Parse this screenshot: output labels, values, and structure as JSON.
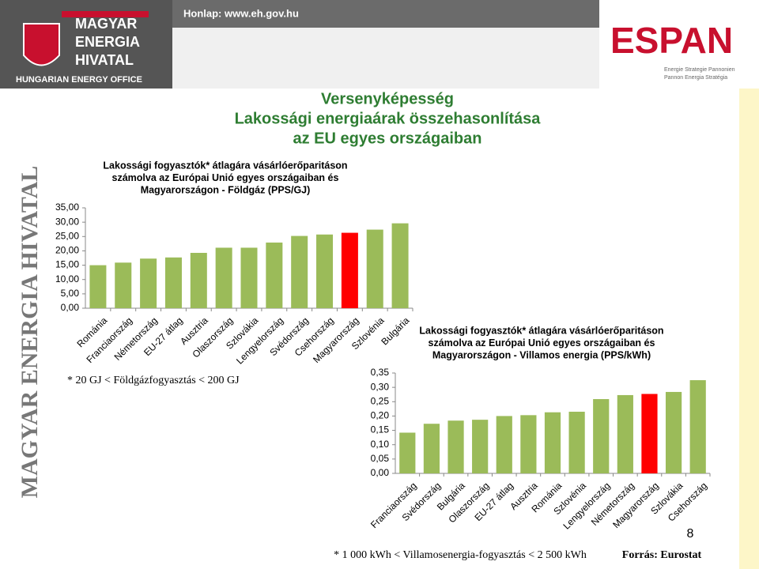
{
  "header": {
    "website": "Honlap: www.eh.gov.hu",
    "logo_lines": [
      "MAGYAR",
      "ENERGIA",
      "HIVATAL"
    ],
    "logo_subtitle": "HUNGARIAN ENERGY OFFICE",
    "espan": "ESPAN",
    "espan_lines": [
      "Energie Strategie Pannonien",
      "Pannon Energia Stratégia"
    ],
    "side_text": "MAGYAR ENERGIA HIVATAL"
  },
  "slide_title": [
    "Versenyképesség",
    "Lakossági energiaárak összehasonlítása",
    "az EU egyes országaiban"
  ],
  "chart_data": [
    {
      "type": "bar",
      "title": [
        "Lakossági fogyasztók* átlagára vásárlóerőparitáson",
        "számolva az Európai Unió egyes országaiban és",
        "Magyarországon - Földgáz (PPS/GJ)"
      ],
      "categories": [
        "Románia",
        "Franciaország",
        "Németország",
        "EU-27 átlag",
        "Ausztria",
        "Olaszország",
        "Szlovákia",
        "Lengyelország",
        "Svédország",
        "Csehország",
        "Magyarország",
        "Szlovénia",
        "Bulgária"
      ],
      "values": [
        15.0,
        15.9,
        17.3,
        17.7,
        19.3,
        21.1,
        21.1,
        22.9,
        25.2,
        25.7,
        26.3,
        27.4,
        29.6
      ],
      "colors": [
        "#9bbb59",
        "#9bbb59",
        "#9bbb59",
        "#9bbb59",
        "#9bbb59",
        "#9bbb59",
        "#9bbb59",
        "#9bbb59",
        "#9bbb59",
        "#9bbb59",
        "#ff0000",
        "#9bbb59",
        "#9bbb59"
      ],
      "ylim": [
        0,
        35
      ],
      "yticks": [
        {
          "value": 0,
          "label": "0,00"
        },
        {
          "value": 5,
          "label": "5,00"
        },
        {
          "value": 10,
          "label": "10,00"
        },
        {
          "value": 15,
          "label": "15,00"
        },
        {
          "value": 20,
          "label": "20,00"
        },
        {
          "value": 25,
          "label": "25,00"
        },
        {
          "value": 30,
          "label": "30,00"
        },
        {
          "value": 35,
          "label": "35,00"
        }
      ],
      "footnote": "* 20 GJ < Földgázfogyasztás < 200 GJ"
    },
    {
      "type": "bar",
      "title": [
        "Lakossági fogyasztók* átlagára vásárlóerőparitáson",
        "számolva az Európai Unió egyes országaiban és",
        "Magyarországon - Villamos energia  (PPS/kWh)"
      ],
      "categories": [
        "Franciaország",
        "Svédország",
        "Bulgária",
        "Olaszország",
        "EU-27 átlag",
        "Ausztria",
        "Románia",
        "Szlovénia",
        "Lengyelország",
        "Németország",
        "Magyarország",
        "Szlovákia",
        "Csehország"
      ],
      "values": [
        0.142,
        0.173,
        0.184,
        0.187,
        0.2,
        0.203,
        0.213,
        0.215,
        0.259,
        0.273,
        0.277,
        0.284,
        0.325
      ],
      "colors": [
        "#9bbb59",
        "#9bbb59",
        "#9bbb59",
        "#9bbb59",
        "#9bbb59",
        "#9bbb59",
        "#9bbb59",
        "#9bbb59",
        "#9bbb59",
        "#9bbb59",
        "#ff0000",
        "#9bbb59",
        "#9bbb59"
      ],
      "ylim": [
        0,
        0.35
      ],
      "yticks": [
        {
          "value": 0,
          "label": "0,00"
        },
        {
          "value": 0.05,
          "label": "0,05"
        },
        {
          "value": 0.1,
          "label": "0,10"
        },
        {
          "value": 0.15,
          "label": "0,15"
        },
        {
          "value": 0.2,
          "label": "0,20"
        },
        {
          "value": 0.25,
          "label": "0,25"
        },
        {
          "value": 0.3,
          "label": "0,30"
        },
        {
          "value": 0.35,
          "label": "0,35"
        }
      ],
      "footnote": "* 1 000 kWh < Villamosenergia-fogyasztás < 2 500 kWh"
    }
  ],
  "source": "Forrás: Eurostat",
  "page_number": "8"
}
